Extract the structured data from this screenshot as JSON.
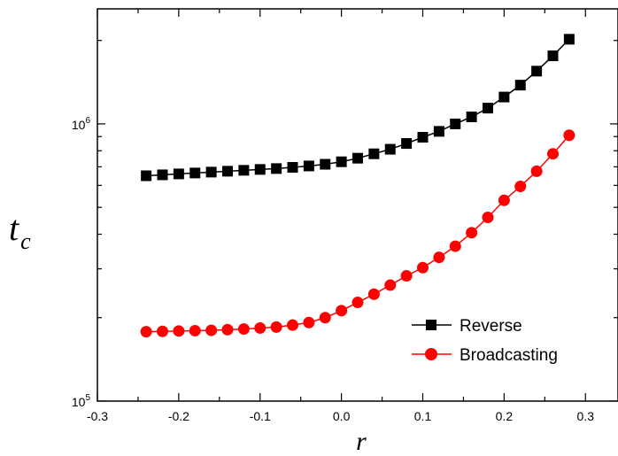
{
  "chart_data": {
    "type": "line",
    "title": "",
    "xlabel": "r",
    "ylabel": {
      "main": "t",
      "sub": "c"
    },
    "x_scale": "linear",
    "y_scale": "log",
    "xlim": [
      -0.3,
      0.34
    ],
    "ylim": [
      100000,
      2600000
    ],
    "x_ticks": [
      -0.3,
      -0.2,
      -0.1,
      0.0,
      0.1,
      0.2,
      0.3
    ],
    "x_tick_labels": [
      "-0.3",
      "-0.2",
      "-0.1",
      "0.0",
      "0.1",
      "0.2",
      "0.3"
    ],
    "y_ticks": [
      {
        "value": 100000,
        "base": "10",
        "exp": "5"
      },
      {
        "value": 1000000,
        "base": "10",
        "exp": "6"
      }
    ],
    "grid": false,
    "legend_position": "bottom-right",
    "x": [
      -0.24,
      -0.22,
      -0.2,
      -0.18,
      -0.16,
      -0.14,
      -0.12,
      -0.1,
      -0.08,
      -0.06,
      -0.04,
      -0.02,
      0.0,
      0.02,
      0.04,
      0.06,
      0.08,
      0.1,
      0.12,
      0.14,
      0.16,
      0.18,
      0.2,
      0.22,
      0.24,
      0.26,
      0.28
    ],
    "series": [
      {
        "name": "Reverse",
        "color": "#000000",
        "marker": "square",
        "values": [
          650000,
          655000,
          660000,
          665000,
          670000,
          675000,
          680000,
          685000,
          690000,
          697000,
          705000,
          715000,
          730000,
          752000,
          780000,
          810000,
          850000,
          895000,
          940000,
          1000000,
          1060000,
          1140000,
          1250000,
          1380000,
          1550000,
          1760000,
          2020000
        ]
      },
      {
        "name": "Broadcasting",
        "color": "#ff0000",
        "marker": "circle",
        "values": [
          178000,
          178500,
          179000,
          179500,
          180000,
          181000,
          182000,
          183500,
          185000,
          188000,
          192000,
          200000,
          212000,
          227000,
          243000,
          262000,
          283000,
          303000,
          330000,
          362000,
          405000,
          460000,
          530000,
          595000,
          675000,
          780000,
          910000
        ]
      }
    ]
  }
}
